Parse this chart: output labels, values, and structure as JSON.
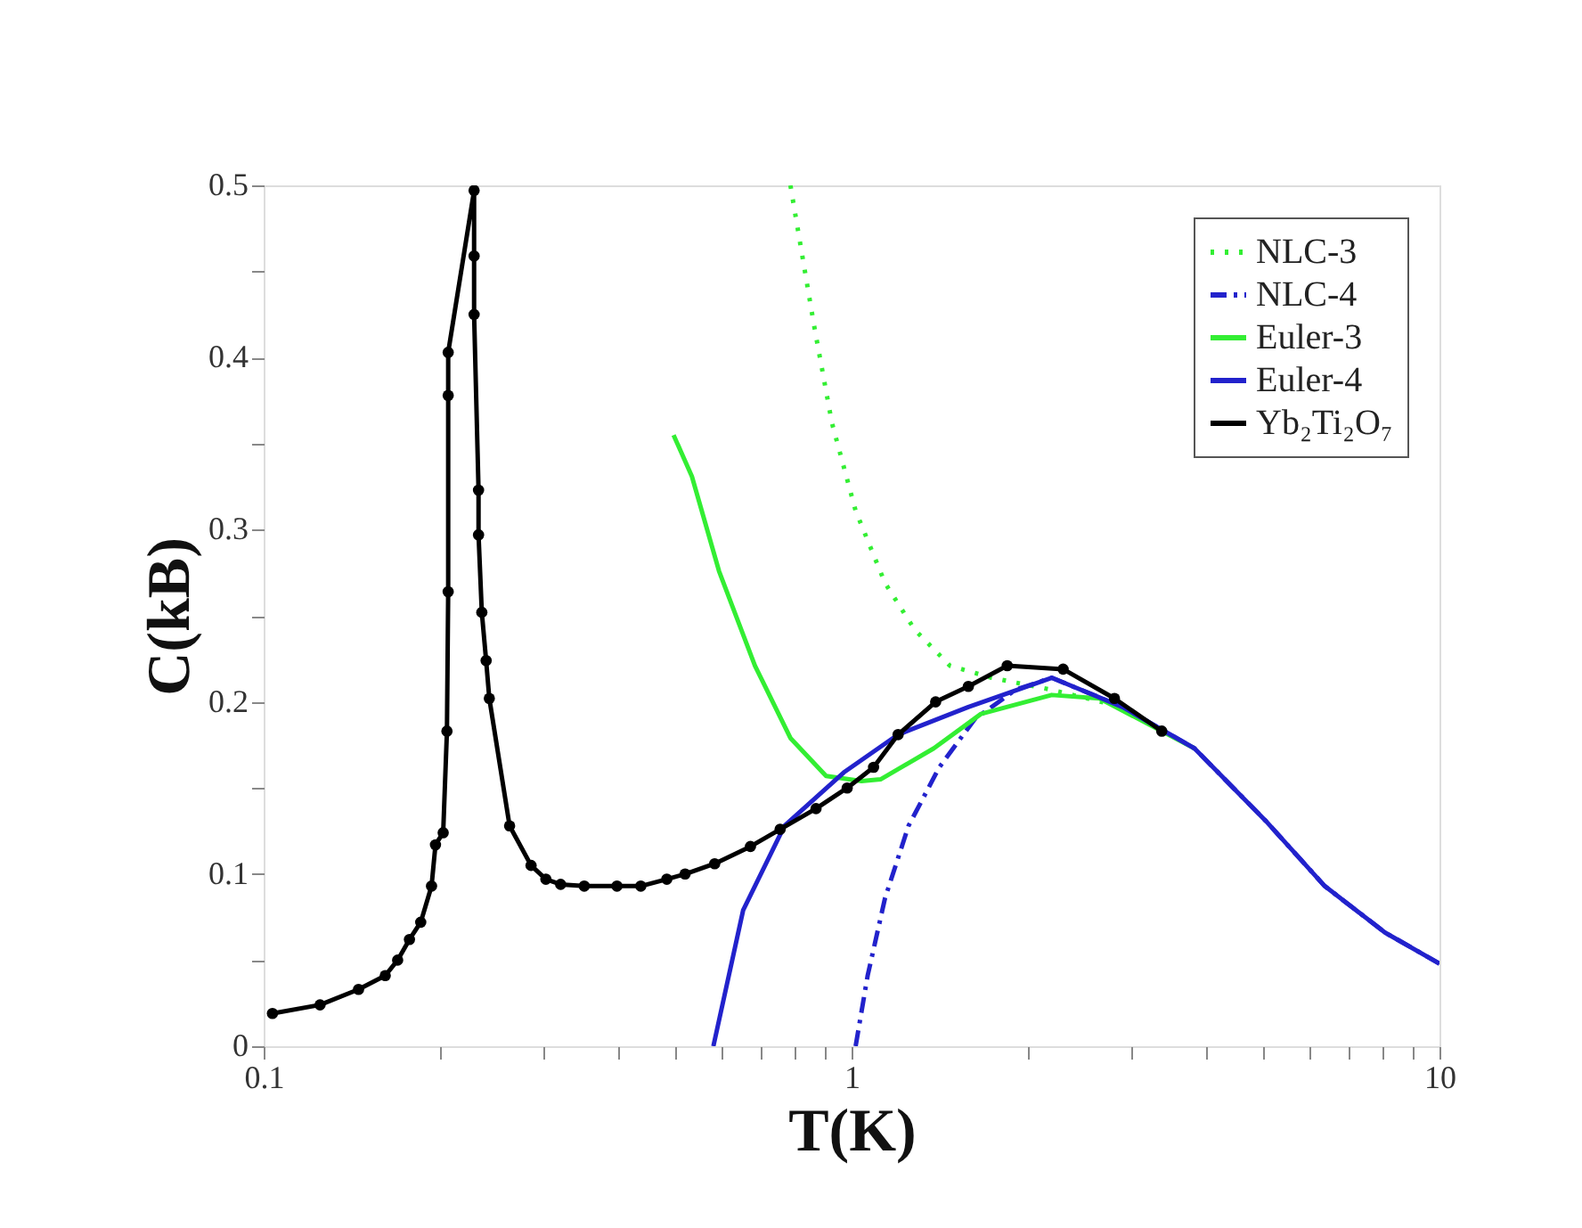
{
  "chart_data": {
    "type": "line",
    "xlabel": "T(K)",
    "ylabel": "C(kB)",
    "log": "x",
    "xlim": [
      0.1,
      10
    ],
    "ylim": [
      0,
      0.5
    ],
    "xticks": [
      0.1,
      {
        "value": 0.2,
        "label": null
      },
      {
        "value": 0.3,
        "label": null
      },
      {
        "value": 0.4,
        "label": null
      },
      {
        "value": 0.5,
        "label": null
      },
      {
        "value": 0.6,
        "label": null
      },
      {
        "value": 0.7,
        "label": null
      },
      {
        "value": 0.8,
        "label": null
      },
      {
        "value": 0.9,
        "label": null
      },
      1,
      {
        "value": 2,
        "label": null
      },
      {
        "value": 3,
        "label": null
      },
      {
        "value": 4,
        "label": null
      },
      {
        "value": 5,
        "label": null
      },
      {
        "value": 6,
        "label": null
      },
      {
        "value": 7,
        "label": null
      },
      {
        "value": 8,
        "label": null
      },
      {
        "value": 9,
        "label": null
      },
      10
    ],
    "yticks": [
      0,
      {
        "value": 0.05,
        "label": null
      },
      0.1,
      {
        "value": 0.15,
        "label": null
      },
      0.2,
      {
        "value": 0.25,
        "label": null
      },
      0.3,
      {
        "value": 0.35,
        "label": null
      },
      0.4,
      {
        "value": 0.45,
        "label": null
      },
      0.5
    ],
    "grid": false,
    "legend": "top right",
    "series": [
      {
        "name": "NLC-3",
        "color": "#33ee33",
        "line_style": "dotted",
        "marker": "none",
        "x": [
          0.787,
          0.864,
          0.926,
          1.016,
          1.14,
          1.28,
          1.47,
          1.73,
          2.19,
          2.89
        ],
        "values": [
          0.5,
          0.418,
          0.362,
          0.311,
          0.269,
          0.242,
          0.221,
          0.214,
          0.207,
          0.197
        ]
      },
      {
        "name": "NLC-4",
        "color": "#2222cc",
        "line_style": "dashed",
        "marker": "none",
        "x": [
          1.016,
          1.065,
          1.14,
          1.25,
          1.41,
          1.62,
          1.9,
          2.19,
          2.89,
          3.83,
          5.06,
          6.38,
          8.08,
          10
        ],
        "values": [
          0,
          0.041,
          0.086,
          0.128,
          0.162,
          0.19,
          0.207,
          0.214,
          0.197,
          0.173,
          0.131,
          0.093,
          0.066,
          0.048
        ]
      },
      {
        "name": "Euler-3",
        "color": "#33ee33",
        "line_style": "solid",
        "marker": "none",
        "x": [
          0.498,
          0.535,
          0.595,
          0.685,
          0.787,
          0.905,
          1.04,
          1.12,
          1.38,
          1.66,
          2.19,
          2.64,
          3.83
        ],
        "values": [
          0.355,
          0.331,
          0.276,
          0.221,
          0.179,
          0.157,
          0.154,
          0.155,
          0.173,
          0.193,
          0.204,
          0.202,
          0.173
        ]
      },
      {
        "name": "Euler-4",
        "color": "#2222cc",
        "line_style": "solid",
        "marker": "none",
        "x": [
          0.582,
          0.654,
          0.769,
          0.97,
          1.2,
          1.58,
          2.19,
          2.89,
          3.83,
          5.06,
          6.38,
          8.08,
          10
        ],
        "values": [
          0,
          0.079,
          0.128,
          0.159,
          0.181,
          0.197,
          0.214,
          0.197,
          0.173,
          0.131,
          0.093,
          0.066,
          0.048
        ]
      },
      {
        "name": "Yb₂Ti₂O₇",
        "color": "#000000",
        "line_style": "solid",
        "marker": "circle",
        "x": [
          0.1035,
          0.1247,
          0.145,
          0.161,
          0.169,
          0.177,
          0.185,
          0.193,
          0.196,
          0.202,
          0.205,
          0.206,
          0.206,
          0.206,
          0.228,
          0.228,
          0.228,
          0.232,
          0.232,
          0.235,
          0.239,
          0.242,
          0.262,
          0.285,
          0.302,
          0.32,
          0.351,
          0.399,
          0.438,
          0.485,
          0.521,
          0.585,
          0.673,
          0.756,
          0.87,
          0.983,
          1.09,
          1.2,
          1.39,
          1.58,
          1.84,
          2.29,
          2.8,
          3.37
        ],
        "values": [
          0.019,
          0.024,
          0.033,
          0.041,
          0.05,
          0.062,
          0.072,
          0.093,
          0.117,
          0.124,
          0.183,
          0.264,
          0.378,
          0.403,
          0.497,
          0.459,
          0.425,
          0.323,
          0.297,
          0.252,
          0.224,
          0.202,
          0.128,
          0.105,
          0.097,
          0.094,
          0.093,
          0.093,
          0.093,
          0.097,
          0.1,
          0.106,
          0.116,
          0.126,
          0.138,
          0.15,
          0.162,
          0.181,
          0.2,
          0.209,
          0.221,
          0.219,
          0.202,
          0.183
        ]
      }
    ]
  }
}
